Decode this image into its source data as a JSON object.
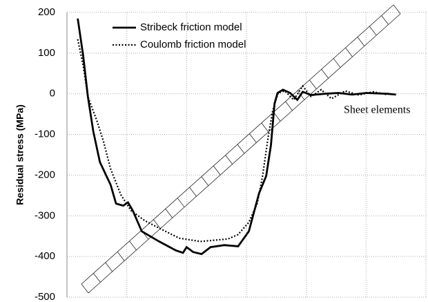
{
  "chart_data": {
    "type": "line",
    "y_label": "Residual stress (MPa)",
    "annotation": "Sheet elements",
    "xlim": [
      0,
      6
    ],
    "xticks": [
      1,
      2,
      3,
      4,
      5,
      6
    ],
    "ylim": [
      -500,
      200
    ],
    "yticks": [
      -500,
      -400,
      -300,
      -200,
      -100,
      0,
      100,
      200
    ],
    "grid": true,
    "legend": "top-left",
    "series": [
      {
        "name": "Stribeck friction model",
        "color": "#000000",
        "style": "solid",
        "x": [
          0.18,
          0.27,
          0.35,
          0.44,
          0.55,
          0.73,
          0.82,
          0.94,
          1.02,
          1.1,
          1.25,
          1.54,
          1.82,
          1.94,
          2.0,
          2.11,
          2.25,
          2.4,
          2.63,
          2.86,
          3.04,
          3.21,
          3.33,
          3.41,
          3.47,
          3.52,
          3.61,
          3.73,
          3.85,
          3.94,
          4.08,
          4.31,
          4.54,
          4.77,
          5.0,
          5.35,
          5.5
        ],
        "values": [
          185,
          95,
          -7,
          -92,
          -168,
          -224,
          -270,
          -275,
          -267,
          -287,
          -338,
          -363,
          -385,
          -391,
          -377,
          -389,
          -394,
          -377,
          -372,
          -375,
          -338,
          -245,
          -202,
          -126,
          -24,
          2,
          10,
          2,
          -15,
          5,
          -3,
          0,
          2,
          -2,
          2,
          0,
          -2
        ]
      },
      {
        "name": "Coulomb friction model",
        "color": "#000000",
        "style": "dotted",
        "x": [
          0.18,
          0.27,
          0.35,
          0.5,
          0.61,
          0.73,
          0.9,
          1.07,
          1.3,
          1.59,
          1.88,
          2.23,
          2.46,
          2.69,
          2.86,
          3.04,
          3.18,
          3.27,
          3.36,
          3.44,
          3.53,
          3.64,
          3.79,
          3.94,
          4.08,
          4.25,
          4.42,
          4.65,
          4.88,
          5.12,
          5.35
        ],
        "values": [
          134,
          70,
          -7,
          -66,
          -117,
          -185,
          -248,
          -287,
          -312,
          -334,
          -355,
          -363,
          -360,
          -357,
          -346,
          -316,
          -270,
          -202,
          -109,
          -41,
          2,
          7,
          -15,
          19,
          -7,
          10,
          -12,
          7,
          -3,
          5,
          -2
        ]
      }
    ]
  }
}
